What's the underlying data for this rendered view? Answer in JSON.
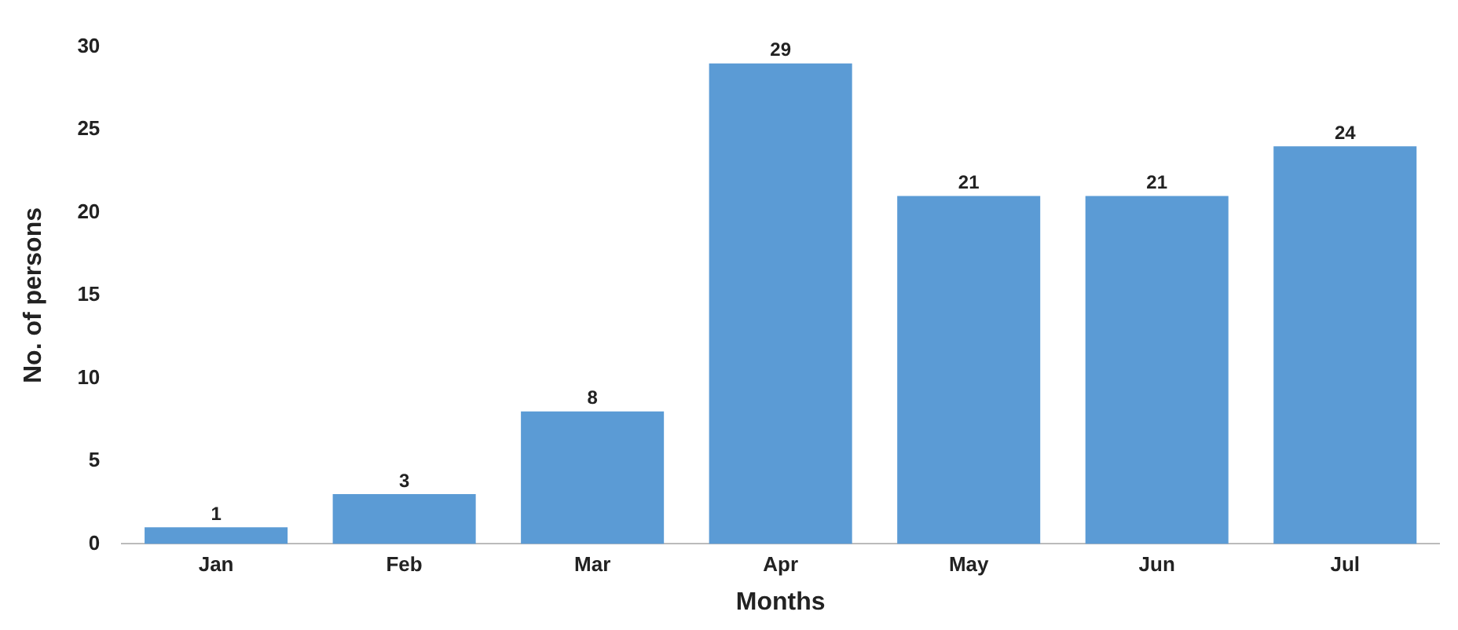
{
  "chart_data": {
    "type": "bar",
    "xlabel": "Months",
    "ylabel": "No. of persons",
    "categories": [
      "Jan",
      "Feb",
      "Mar",
      "Apr",
      "May",
      "Jun",
      "Jul"
    ],
    "values": [
      1,
      3,
      8,
      29,
      21,
      21,
      24
    ],
    "color": "#5b9bd5",
    "ylim": [
      0,
      30
    ],
    "yticks": [
      0,
      5,
      10,
      15,
      20,
      25,
      30
    ],
    "grid": false,
    "legend": false,
    "data_labels": true
  }
}
